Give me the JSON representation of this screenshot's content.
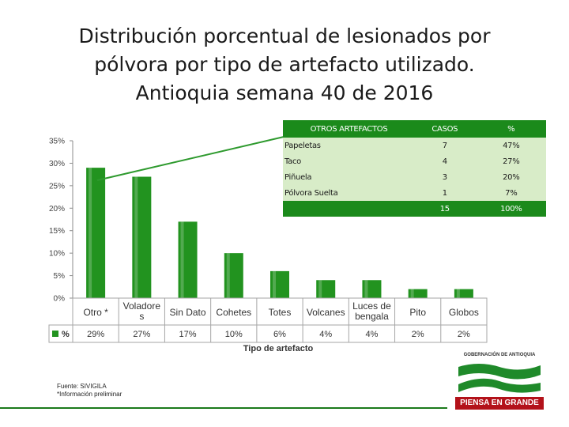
{
  "slide": {
    "title_lines": [
      "Distribución porcentual de lesionados por",
      "pólvora por tipo de artefacto utilizado.",
      "Antioquia semana 40 de 2016"
    ],
    "source_lines": [
      "Fuente: SIVIGILA",
      "*Información preliminar"
    ]
  },
  "chart_data": [
    {
      "type": "bar",
      "title": "",
      "xlabel": "Tipo de artefacto",
      "ylabel": "",
      "ylim": [
        0,
        0.35
      ],
      "yticks": [
        "0%",
        "5%",
        "10%",
        "15%",
        "20%",
        "25%",
        "30%",
        "35%"
      ],
      "categories": [
        [
          "Otro *"
        ],
        [
          "Voladore",
          "s"
        ],
        [
          "Sin Dato"
        ],
        [
          "Cohetes"
        ],
        [
          "Totes"
        ],
        [
          "Volcanes"
        ],
        [
          "Luces de",
          "bengala"
        ],
        [
          "Pito"
        ],
        [
          "Globos"
        ]
      ],
      "series": [
        {
          "name": "%",
          "color": "#22931f",
          "values": [
            0.29,
            0.27,
            0.17,
            0.1,
            0.06,
            0.04,
            0.04,
            0.02,
            0.02
          ],
          "labels": [
            "29%",
            "27%",
            "17%",
            "10%",
            "6%",
            "4%",
            "4%",
            "2%",
            "2%"
          ]
        }
      ],
      "legend": "inline data table below axis",
      "grid": false
    },
    {
      "type": "table",
      "title": "OTROS ARTEFACTOS",
      "columns": [
        "OTROS ARTEFACTOS",
        "CASOS",
        "%"
      ],
      "rows": [
        [
          "Papeletas",
          "7",
          "47%"
        ],
        [
          "Taco",
          "4",
          "27%"
        ],
        [
          "Piñuela",
          "3",
          "20%"
        ],
        [
          "Pólvora Suelta",
          "1",
          "7%"
        ]
      ],
      "total": [
        "",
        "15",
        "100%"
      ]
    }
  ],
  "logo": {
    "caption": "GOBERNACIÓN DE ANTIOQUIA",
    "slogan": "PIENSA EN GRANDE"
  },
  "colors": {
    "bar": "#22931f",
    "table_header": "#1b8a1b",
    "table_body": "#d8ecc8",
    "slogan_bg": "#b3121a",
    "pointer_line": "#2e9a2e"
  }
}
